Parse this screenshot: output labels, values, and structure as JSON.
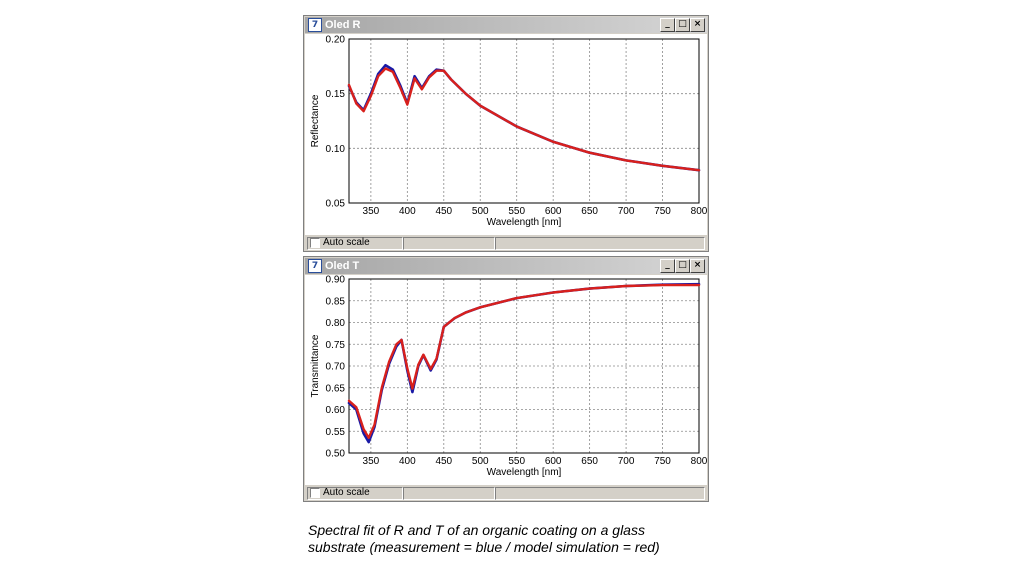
{
  "windows": [
    {
      "title": "Oled R",
      "controls": {
        "minimize": "_",
        "maximize": "□",
        "close": "×"
      },
      "icon": "app-icon",
      "status": {
        "checkbox_label": "Auto scale",
        "checked": false
      },
      "chart_data": {
        "type": "line",
        "xlabel": "Wavelength [nm]",
        "ylabel": "Reflectance",
        "xlim": [
          320,
          800
        ],
        "ylim": [
          0.05,
          0.2
        ],
        "xticks": [
          350,
          400,
          450,
          500,
          550,
          600,
          650,
          700,
          750,
          800
        ],
        "yticks": [
          0.05,
          0.1,
          0.15,
          0.2
        ],
        "ytick_labels": [
          "0.05",
          "0.10",
          "0.15",
          "0.20"
        ],
        "grid": true,
        "series": [
          {
            "color": "#1a1aa6",
            "x": [
              320,
              330,
              340,
              350,
              360,
              370,
              380,
              390,
              400,
              410,
              420,
              430,
              440,
              450,
              460,
              480,
              500,
              550,
              600,
              650,
              700,
              750,
              800
            ],
            "y": [
              0.157,
              0.142,
              0.135,
              0.15,
              0.168,
              0.176,
              0.172,
              0.158,
              0.141,
              0.166,
              0.155,
              0.166,
              0.172,
              0.171,
              0.163,
              0.15,
              0.139,
              0.12,
              0.106,
              0.096,
              0.089,
              0.084,
              0.08
            ]
          },
          {
            "color": "#d8201c",
            "x": [
              320,
              330,
              340,
              350,
              360,
              370,
              380,
              390,
              400,
              410,
              420,
              430,
              440,
              450,
              460,
              480,
              500,
              550,
              600,
              650,
              700,
              750,
              800
            ],
            "y": [
              0.158,
              0.141,
              0.134,
              0.148,
              0.166,
              0.173,
              0.17,
              0.156,
              0.14,
              0.164,
              0.154,
              0.165,
              0.171,
              0.171,
              0.163,
              0.15,
              0.139,
              0.12,
              0.106,
              0.096,
              0.089,
              0.084,
              0.08
            ]
          }
        ]
      }
    },
    {
      "title": "Oled T",
      "controls": {
        "minimize": "_",
        "maximize": "□",
        "close": "×"
      },
      "icon": "app-icon",
      "status": {
        "checkbox_label": "Auto scale",
        "checked": false
      },
      "chart_data": {
        "type": "line",
        "xlabel": "Wavelength [nm]",
        "ylabel": "Transmittance",
        "xlim": [
          320,
          800
        ],
        "ylim": [
          0.5,
          0.9
        ],
        "xticks": [
          350,
          400,
          450,
          500,
          550,
          600,
          650,
          700,
          750,
          800
        ],
        "yticks": [
          0.5,
          0.55,
          0.6,
          0.65,
          0.7,
          0.75,
          0.8,
          0.85,
          0.9
        ],
        "ytick_labels": [
          "0.50",
          "0.55",
          "0.60",
          "0.65",
          "0.70",
          "0.75",
          "0.80",
          "0.85",
          "0.90"
        ],
        "grid": true,
        "series": [
          {
            "color": "#1a1aa6",
            "x": [
              320,
              330,
              340,
              347,
              355,
              365,
              375,
              385,
              392,
              400,
              407,
              415,
              422,
              432,
              440,
              450,
              465,
              480,
              500,
              550,
              600,
              650,
              700,
              750,
              800
            ],
            "y": [
              0.615,
              0.6,
              0.545,
              0.525,
              0.56,
              0.645,
              0.705,
              0.745,
              0.76,
              0.69,
              0.64,
              0.7,
              0.725,
              0.69,
              0.715,
              0.79,
              0.81,
              0.823,
              0.835,
              0.856,
              0.869,
              0.878,
              0.884,
              0.887,
              0.888
            ]
          },
          {
            "color": "#d8201c",
            "x": [
              320,
              330,
              340,
              347,
              355,
              365,
              375,
              385,
              392,
              400,
              407,
              415,
              422,
              432,
              440,
              450,
              465,
              480,
              500,
              550,
              600,
              650,
              700,
              750,
              800
            ],
            "y": [
              0.62,
              0.605,
              0.555,
              0.535,
              0.565,
              0.65,
              0.71,
              0.75,
              0.76,
              0.695,
              0.648,
              0.703,
              0.726,
              0.693,
              0.717,
              0.79,
              0.81,
              0.823,
              0.835,
              0.856,
              0.869,
              0.878,
              0.884,
              0.886,
              0.886
            ]
          }
        ]
      }
    }
  ],
  "caption": {
    "line1": "Spectral fit of R and T of an organic coating on a glass",
    "line2": "substrate (measurement = blue / model simulation = red)"
  }
}
